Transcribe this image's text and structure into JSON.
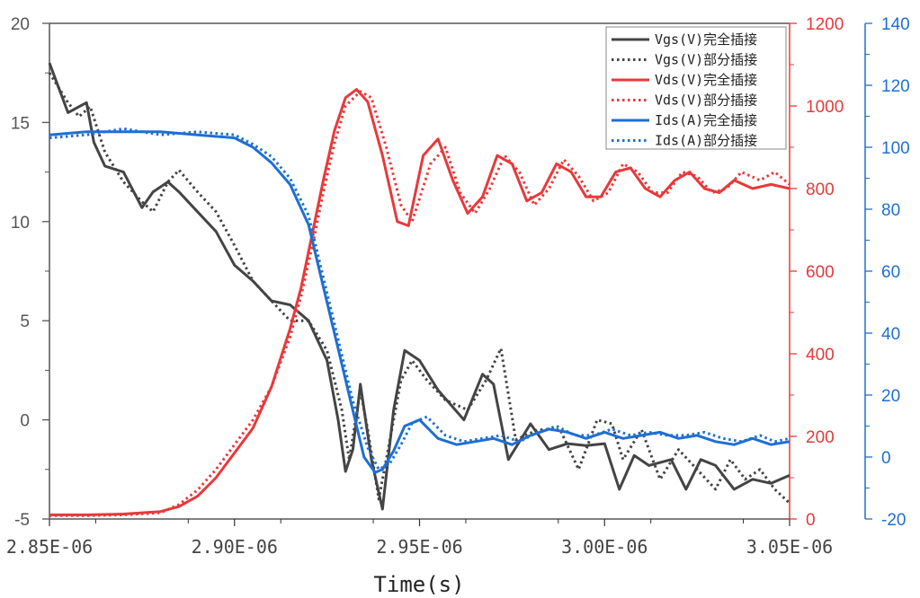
{
  "chart_data": {
    "type": "line",
    "title": "",
    "xlabel": "Time(s)",
    "x_ticks": [
      "2.85E-06",
      "2.90E-06",
      "2.95E-06",
      "3.00E-06",
      "3.05E-06"
    ],
    "xlim": [
      2.85e-06,
      3.05e-06
    ],
    "axes": [
      {
        "name": "Vgs",
        "side": "left",
        "color": "#555555",
        "ylim": [
          -5,
          20
        ],
        "ticks": [
          -5,
          0,
          5,
          10,
          15,
          20
        ],
        "tick_labels": [
          "-5",
          "0",
          "5",
          "10",
          "15",
          "20"
        ]
      },
      {
        "name": "Vds",
        "side": "right-inner",
        "color": "#e8393b",
        "ylim": [
          0,
          1200
        ],
        "ticks": [
          0,
          200,
          400,
          600,
          800,
          1000,
          1200
        ],
        "tick_labels": [
          "0",
          "200",
          "400",
          "600",
          "800",
          "1000",
          "1200"
        ]
      },
      {
        "name": "Ids",
        "side": "right-outer",
        "color": "#1f6fd1",
        "ylim": [
          -20,
          140
        ],
        "ticks": [
          -20,
          0,
          20,
          40,
          60,
          80,
          100,
          120,
          140
        ],
        "tick_labels": [
          "-20",
          "0",
          "20",
          "40",
          "60",
          "80",
          "100",
          "120",
          "140"
        ]
      }
    ],
    "series": [
      {
        "name": "Vgs(V)完全插接",
        "axis": 0,
        "color": "#444444",
        "style": "solid",
        "x": [
          2.85e-06,
          2.855e-06,
          2.86e-06,
          2.862e-06,
          2.865e-06,
          2.87e-06,
          2.875e-06,
          2.878e-06,
          2.882e-06,
          2.885e-06,
          2.89e-06,
          2.895e-06,
          2.9e-06,
          2.905e-06,
          2.91e-06,
          2.915e-06,
          2.92e-06,
          2.925e-06,
          2.928e-06,
          2.93e-06,
          2.932e-06,
          2.934e-06,
          2.937e-06,
          2.94e-06,
          2.943e-06,
          2.946e-06,
          2.95e-06,
          2.955e-06,
          2.962e-06,
          2.967e-06,
          2.97e-06,
          2.974e-06,
          2.98e-06,
          2.985e-06,
          2.99e-06,
          2.995e-06,
          3e-06,
          3.004e-06,
          3.008e-06,
          3.012e-06,
          3.018e-06,
          3.022e-06,
          3.026e-06,
          3.03e-06,
          3.035e-06,
          3.04e-06,
          3.045e-06,
          3.05e-06
        ],
        "y": [
          18.0,
          15.5,
          16.0,
          14.0,
          12.8,
          12.5,
          10.7,
          11.5,
          12.0,
          11.5,
          10.5,
          9.5,
          7.8,
          7.0,
          6.0,
          5.8,
          5.0,
          3.0,
          0.0,
          -2.6,
          -1.5,
          1.8,
          -2.0,
          -4.5,
          0.5,
          3.5,
          3.0,
          1.5,
          0.0,
          2.3,
          1.8,
          -2.0,
          -0.2,
          -1.5,
          -1.2,
          -1.3,
          -1.2,
          -3.5,
          -1.8,
          -2.3,
          -2.0,
          -3.5,
          -2.0,
          -2.3,
          -3.5,
          -3.0,
          -3.2,
          -2.8
        ]
      },
      {
        "name": "Vgs(V)部分插接",
        "axis": 0,
        "color": "#444444",
        "style": "dotted",
        "x": [
          2.85e-06,
          2.855e-06,
          2.858e-06,
          2.861e-06,
          2.865e-06,
          2.87e-06,
          2.875e-06,
          2.878e-06,
          2.882e-06,
          2.885e-06,
          2.89e-06,
          2.895e-06,
          2.9e-06,
          2.905e-06,
          2.91e-06,
          2.915e-06,
          2.92e-06,
          2.925e-06,
          2.929e-06,
          2.931e-06,
          2.934e-06,
          2.936e-06,
          2.939e-06,
          2.942e-06,
          2.945e-06,
          2.948e-06,
          2.952e-06,
          2.957e-06,
          2.963e-06,
          2.968e-06,
          2.972e-06,
          2.976e-06,
          2.982e-06,
          2.988e-06,
          2.993e-06,
          2.998e-06,
          3.002e-06,
          3.005e-06,
          3.01e-06,
          3.015e-06,
          3.02e-06,
          3.025e-06,
          3.03e-06,
          3.034e-06,
          3.038e-06,
          3.042e-06,
          3.046e-06,
          3.05e-06
        ],
        "y": [
          17.5,
          16.0,
          15.3,
          15.8,
          13.5,
          12.0,
          11.0,
          10.5,
          12.0,
          12.6,
          11.5,
          10.5,
          8.8,
          7.0,
          6.0,
          5.0,
          5.0,
          3.5,
          0.5,
          -2.0,
          1.5,
          -0.5,
          -4.0,
          -1.0,
          2.0,
          3.0,
          2.0,
          1.0,
          0.5,
          2.0,
          3.6,
          -1.0,
          -0.5,
          -0.5,
          -2.5,
          0.0,
          -0.2,
          -2.0,
          -0.5,
          -3.0,
          -1.5,
          -2.5,
          -3.5,
          -2.0,
          -3.0,
          -2.5,
          -3.5,
          -4.2
        ]
      },
      {
        "name": "Vds(V)完全插接",
        "axis": 1,
        "color": "#e8393b",
        "style": "solid",
        "x": [
          2.85e-06,
          2.86e-06,
          2.87e-06,
          2.88e-06,
          2.885e-06,
          2.89e-06,
          2.895e-06,
          2.9e-06,
          2.905e-06,
          2.91e-06,
          2.915e-06,
          2.918e-06,
          2.921e-06,
          2.924e-06,
          2.927e-06,
          2.93e-06,
          2.933e-06,
          2.936e-06,
          2.94e-06,
          2.944e-06,
          2.947e-06,
          2.951e-06,
          2.955e-06,
          2.959e-06,
          2.963e-06,
          2.967e-06,
          2.971e-06,
          2.975e-06,
          2.979e-06,
          2.983e-06,
          2.987e-06,
          2.991e-06,
          2.995e-06,
          2.999e-06,
          3.003e-06,
          3.007e-06,
          3.011e-06,
          3.015e-06,
          3.019e-06,
          3.023e-06,
          3.027e-06,
          3.031e-06,
          3.035e-06,
          3.04e-06,
          3.045e-06,
          3.05e-06
        ],
        "y": [
          10,
          10,
          12,
          18,
          30,
          55,
          100,
          160,
          220,
          320,
          460,
          560,
          690,
          820,
          940,
          1020,
          1040,
          1010,
          880,
          720,
          710,
          880,
          920,
          820,
          740,
          780,
          880,
          860,
          770,
          790,
          860,
          840,
          780,
          780,
          840,
          850,
          800,
          780,
          820,
          840,
          800,
          790,
          820,
          800,
          810,
          800
        ]
      },
      {
        "name": "Vds(V)部分插接",
        "axis": 1,
        "color": "#e8393b",
        "style": "dotted",
        "x": [
          2.85e-06,
          2.86e-06,
          2.87e-06,
          2.88e-06,
          2.885e-06,
          2.89e-06,
          2.895e-06,
          2.9e-06,
          2.905e-06,
          2.91e-06,
          2.915e-06,
          2.918e-06,
          2.921e-06,
          2.924e-06,
          2.927e-06,
          2.93e-06,
          2.934e-06,
          2.937e-06,
          2.941e-06,
          2.945e-06,
          2.948e-06,
          2.953e-06,
          2.957e-06,
          2.961e-06,
          2.965e-06,
          2.969e-06,
          2.973e-06,
          2.977e-06,
          2.981e-06,
          2.985e-06,
          2.989e-06,
          2.993e-06,
          2.997e-06,
          3.001e-06,
          3.005e-06,
          3.009e-06,
          3.013e-06,
          3.017e-06,
          3.021e-06,
          3.025e-06,
          3.029e-06,
          3.033e-06,
          3.037e-06,
          3.042e-06,
          3.046e-06,
          3.05e-06
        ],
        "y": [
          8,
          8,
          10,
          15,
          35,
          70,
          120,
          180,
          240,
          320,
          440,
          540,
          660,
          790,
          910,
          1000,
          1035,
          1020,
          900,
          760,
          720,
          860,
          900,
          790,
          740,
          800,
          880,
          840,
          760,
          800,
          870,
          830,
          770,
          790,
          860,
          840,
          790,
          790,
          840,
          830,
          790,
          800,
          840,
          820,
          840,
          810
        ]
      },
      {
        "name": "Ids(A)完全插接",
        "axis": 2,
        "color": "#1f6fd1",
        "style": "solid",
        "x": [
          2.85e-06,
          2.86e-06,
          2.87e-06,
          2.88e-06,
          2.89e-06,
          2.9e-06,
          2.905e-06,
          2.91e-06,
          2.915e-06,
          2.92e-06,
          2.924e-06,
          2.928e-06,
          2.932e-06,
          2.935e-06,
          2.938e-06,
          2.94e-06,
          2.943e-06,
          2.946e-06,
          2.95e-06,
          2.955e-06,
          2.96e-06,
          2.965e-06,
          2.97e-06,
          2.975e-06,
          2.98e-06,
          2.985e-06,
          2.99e-06,
          2.995e-06,
          3e-06,
          3.005e-06,
          3.01e-06,
          3.015e-06,
          3.02e-06,
          3.025e-06,
          3.03e-06,
          3.035e-06,
          3.04e-06,
          3.045e-06,
          3.05e-06
        ],
        "y": [
          104,
          105,
          105,
          105,
          104,
          103,
          100,
          95,
          88,
          75,
          55,
          35,
          15,
          0,
          -5,
          -4,
          2,
          10,
          12,
          6,
          4,
          5,
          6,
          4,
          7,
          9,
          8,
          6,
          8,
          6,
          7,
          8,
          6,
          7,
          5,
          4,
          6,
          4,
          5
        ]
      },
      {
        "name": "Ids(A)部分插接",
        "axis": 2,
        "color": "#1f6fd1",
        "style": "dotted",
        "x": [
          2.85e-06,
          2.86e-06,
          2.87e-06,
          2.88e-06,
          2.89e-06,
          2.9e-06,
          2.905e-06,
          2.91e-06,
          2.915e-06,
          2.92e-06,
          2.924e-06,
          2.928e-06,
          2.932e-06,
          2.936e-06,
          2.939e-06,
          2.942e-06,
          2.945e-06,
          2.948e-06,
          2.952e-06,
          2.957e-06,
          2.962e-06,
          2.967e-06,
          2.972e-06,
          2.977e-06,
          2.982e-06,
          2.987e-06,
          2.992e-06,
          2.997e-06,
          3.002e-06,
          3.007e-06,
          3.012e-06,
          3.017e-06,
          3.022e-06,
          3.027e-06,
          3.032e-06,
          3.037e-06,
          3.042e-06,
          3.046e-06,
          3.05e-06
        ],
        "y": [
          103,
          104,
          106,
          104,
          105,
          104,
          101,
          97,
          90,
          78,
          58,
          38,
          18,
          3,
          -4,
          -2,
          4,
          11,
          13,
          7,
          5,
          6,
          7,
          5,
          8,
          10,
          7,
          7,
          9,
          7,
          8,
          7,
          7,
          8,
          6,
          5,
          7,
          5,
          6
        ]
      }
    ]
  }
}
